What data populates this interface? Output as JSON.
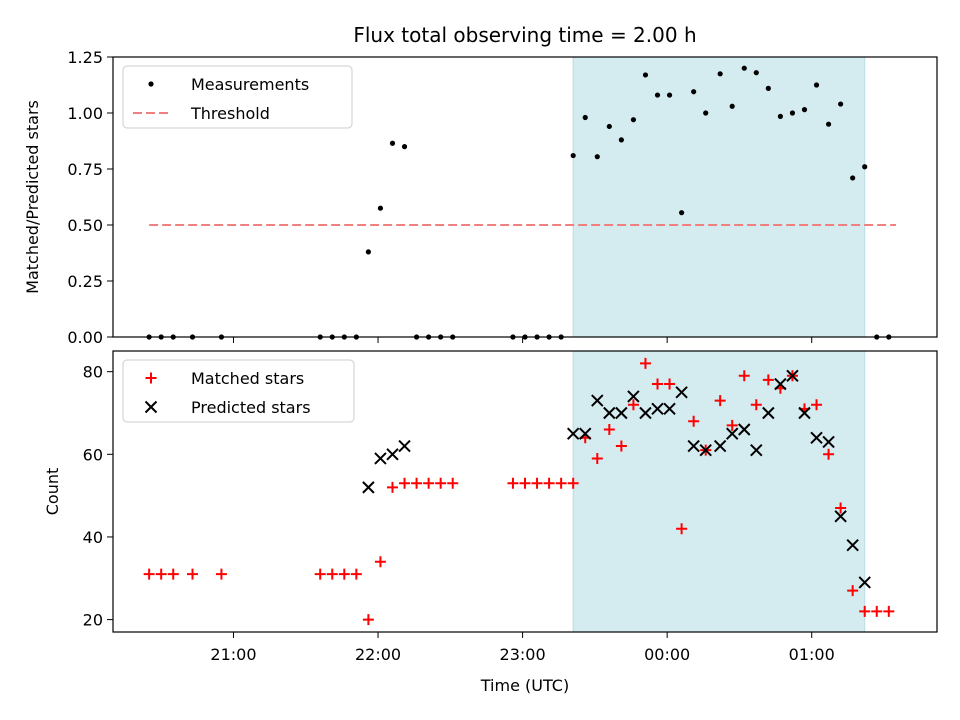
{
  "chart_data": {
    "title": "Flux total observing time = 2.00 h",
    "xlabel": "Time (UTC)",
    "x_range": [
      "20:10",
      "01:52"
    ],
    "x_ticks": [
      "21:00",
      "22:00",
      "23:00",
      "00:00",
      "01:00"
    ],
    "shaded_interval": [
      "23:21",
      "01:22"
    ],
    "shade_color": "#d4ebf0",
    "panels": [
      {
        "type": "scatter",
        "ylabel": "Matched/Predicted stars",
        "ylim": [
          0,
          1.25
        ],
        "y_ticks": [
          "0.00",
          "0.25",
          "0.50",
          "0.75",
          "1.00",
          "1.25"
        ],
        "legend": {
          "placement": "top-left",
          "entries": [
            "Measurements",
            "Threshold"
          ]
        },
        "threshold": {
          "name": "Threshold",
          "value": 0.5,
          "x_start": "20:25",
          "x_end": "01:35",
          "color": "#f08080"
        },
        "series": [
          {
            "name": "Measurements",
            "marker": "dot",
            "color": "#000000",
            "points": [
              [
                "20:25",
                0.0
              ],
              [
                "20:30",
                0.0
              ],
              [
                "20:35",
                0.0
              ],
              [
                "20:43",
                0.0
              ],
              [
                "20:55",
                0.0
              ],
              [
                "21:36",
                0.0
              ],
              [
                "21:41",
                0.0
              ],
              [
                "21:46",
                0.0
              ],
              [
                "21:51",
                0.0
              ],
              [
                "21:56",
                0.38
              ],
              [
                "22:01",
                0.575
              ],
              [
                "22:06",
                0.865
              ],
              [
                "22:11",
                0.85
              ],
              [
                "22:16",
                0.0
              ],
              [
                "22:21",
                0.0
              ],
              [
                "22:26",
                0.0
              ],
              [
                "22:31",
                0.0
              ],
              [
                "22:56",
                0.0
              ],
              [
                "23:01",
                0.0
              ],
              [
                "23:06",
                0.0
              ],
              [
                "23:11",
                0.0
              ],
              [
                "23:16",
                0.0
              ],
              [
                "23:21",
                0.81
              ],
              [
                "23:26",
                0.98
              ],
              [
                "23:31",
                0.805
              ],
              [
                "23:36",
                0.94
              ],
              [
                "23:41",
                0.88
              ],
              [
                "23:46",
                0.97
              ],
              [
                "23:51",
                1.17
              ],
              [
                "23:56",
                1.08
              ],
              [
                "00:01",
                1.08
              ],
              [
                "00:06",
                0.555
              ],
              [
                "00:11",
                1.095
              ],
              [
                "00:16",
                1.0
              ],
              [
                "00:22",
                1.175
              ],
              [
                "00:27",
                1.03
              ],
              [
                "00:32",
                1.2
              ],
              [
                "00:37",
                1.18
              ],
              [
                "00:42",
                1.11
              ],
              [
                "00:47",
                0.985
              ],
              [
                "00:52",
                1.0
              ],
              [
                "00:57",
                1.015
              ],
              [
                "01:02",
                1.125
              ],
              [
                "01:07",
                0.95
              ],
              [
                "01:12",
                1.04
              ],
              [
                "01:17",
                0.71
              ],
              [
                "01:22",
                0.76
              ],
              [
                "01:27",
                0.0
              ],
              [
                "01:32",
                0.0
              ]
            ]
          }
        ]
      },
      {
        "type": "scatter",
        "ylabel": "Count",
        "ylim": [
          17,
          85
        ],
        "y_ticks": [
          "20",
          "40",
          "60",
          "80"
        ],
        "legend": {
          "placement": "top-left",
          "entries": [
            "Matched stars",
            "Predicted stars"
          ]
        },
        "series": [
          {
            "name": "Matched stars",
            "marker": "plus",
            "color": "#ff0000",
            "points": [
              [
                "20:25",
                31
              ],
              [
                "20:30",
                31
              ],
              [
                "20:35",
                31
              ],
              [
                "20:43",
                31
              ],
              [
                "20:55",
                31
              ],
              [
                "21:36",
                31
              ],
              [
                "21:41",
                31
              ],
              [
                "21:46",
                31
              ],
              [
                "21:51",
                31
              ],
              [
                "21:56",
                20
              ],
              [
                "22:01",
                34
              ],
              [
                "22:06",
                52
              ],
              [
                "22:11",
                53
              ],
              [
                "22:16",
                53
              ],
              [
                "22:21",
                53
              ],
              [
                "22:26",
                53
              ],
              [
                "22:31",
                53
              ],
              [
                "22:56",
                53
              ],
              [
                "23:01",
                53
              ],
              [
                "23:06",
                53
              ],
              [
                "23:11",
                53
              ],
              [
                "23:16",
                53
              ],
              [
                "23:21",
                53
              ],
              [
                "23:26",
                64
              ],
              [
                "23:31",
                59
              ],
              [
                "23:36",
                66
              ],
              [
                "23:41",
                62
              ],
              [
                "23:46",
                72
              ],
              [
                "23:51",
                82
              ],
              [
                "23:56",
                77
              ],
              [
                "00:01",
                77
              ],
              [
                "00:06",
                42
              ],
              [
                "00:11",
                68
              ],
              [
                "00:16",
                61
              ],
              [
                "00:22",
                73
              ],
              [
                "00:27",
                67
              ],
              [
                "00:32",
                79
              ],
              [
                "00:37",
                72
              ],
              [
                "00:42",
                78
              ],
              [
                "00:47",
                76
              ],
              [
                "00:52",
                79
              ],
              [
                "00:57",
                71
              ],
              [
                "01:02",
                72
              ],
              [
                "01:07",
                60
              ],
              [
                "01:12",
                47
              ],
              [
                "01:17",
                27
              ],
              [
                "01:22",
                22
              ],
              [
                "01:27",
                22
              ],
              [
                "01:32",
                22
              ]
            ]
          },
          {
            "name": "Predicted stars",
            "marker": "x",
            "color": "#000000",
            "points": [
              [
                "21:56",
                52
              ],
              [
                "22:01",
                59
              ],
              [
                "22:06",
                60
              ],
              [
                "22:11",
                62
              ],
              [
                "23:21",
                65
              ],
              [
                "23:26",
                65
              ],
              [
                "23:31",
                73
              ],
              [
                "23:36",
                70
              ],
              [
                "23:41",
                70
              ],
              [
                "23:46",
                74
              ],
              [
                "23:51",
                70
              ],
              [
                "23:56",
                71
              ],
              [
                "00:01",
                71
              ],
              [
                "00:06",
                75
              ],
              [
                "00:11",
                62
              ],
              [
                "00:16",
                61
              ],
              [
                "00:22",
                62
              ],
              [
                "00:27",
                65
              ],
              [
                "00:32",
                66
              ],
              [
                "00:37",
                61
              ],
              [
                "00:42",
                70
              ],
              [
                "00:47",
                77
              ],
              [
                "00:52",
                79
              ],
              [
                "00:57",
                70
              ],
              [
                "01:02",
                64
              ],
              [
                "01:07",
                63
              ],
              [
                "01:12",
                45
              ],
              [
                "01:17",
                38
              ],
              [
                "01:22",
                29
              ]
            ]
          }
        ]
      }
    ]
  }
}
